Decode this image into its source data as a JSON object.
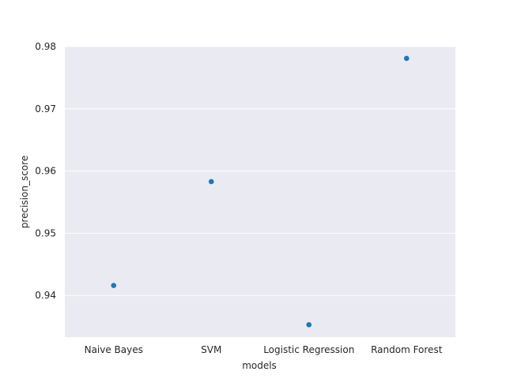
{
  "chart_data": {
    "type": "scatter",
    "categories": [
      "Naive Bayes",
      "SVM",
      "Logistic Regression",
      "Random Forest"
    ],
    "values": [
      0.9416,
      0.9583,
      0.9353,
      0.9781
    ],
    "title": "",
    "xlabel": "models",
    "ylabel": "precision_score",
    "ylim": [
      0.9333,
      0.98
    ],
    "yticks": [
      "0.94",
      "0.95",
      "0.96",
      "0.97",
      "0.98"
    ],
    "grid": true,
    "background_color": "#eaeaf2",
    "grid_color": "#ffffff",
    "point_color": "#1f77b4"
  }
}
